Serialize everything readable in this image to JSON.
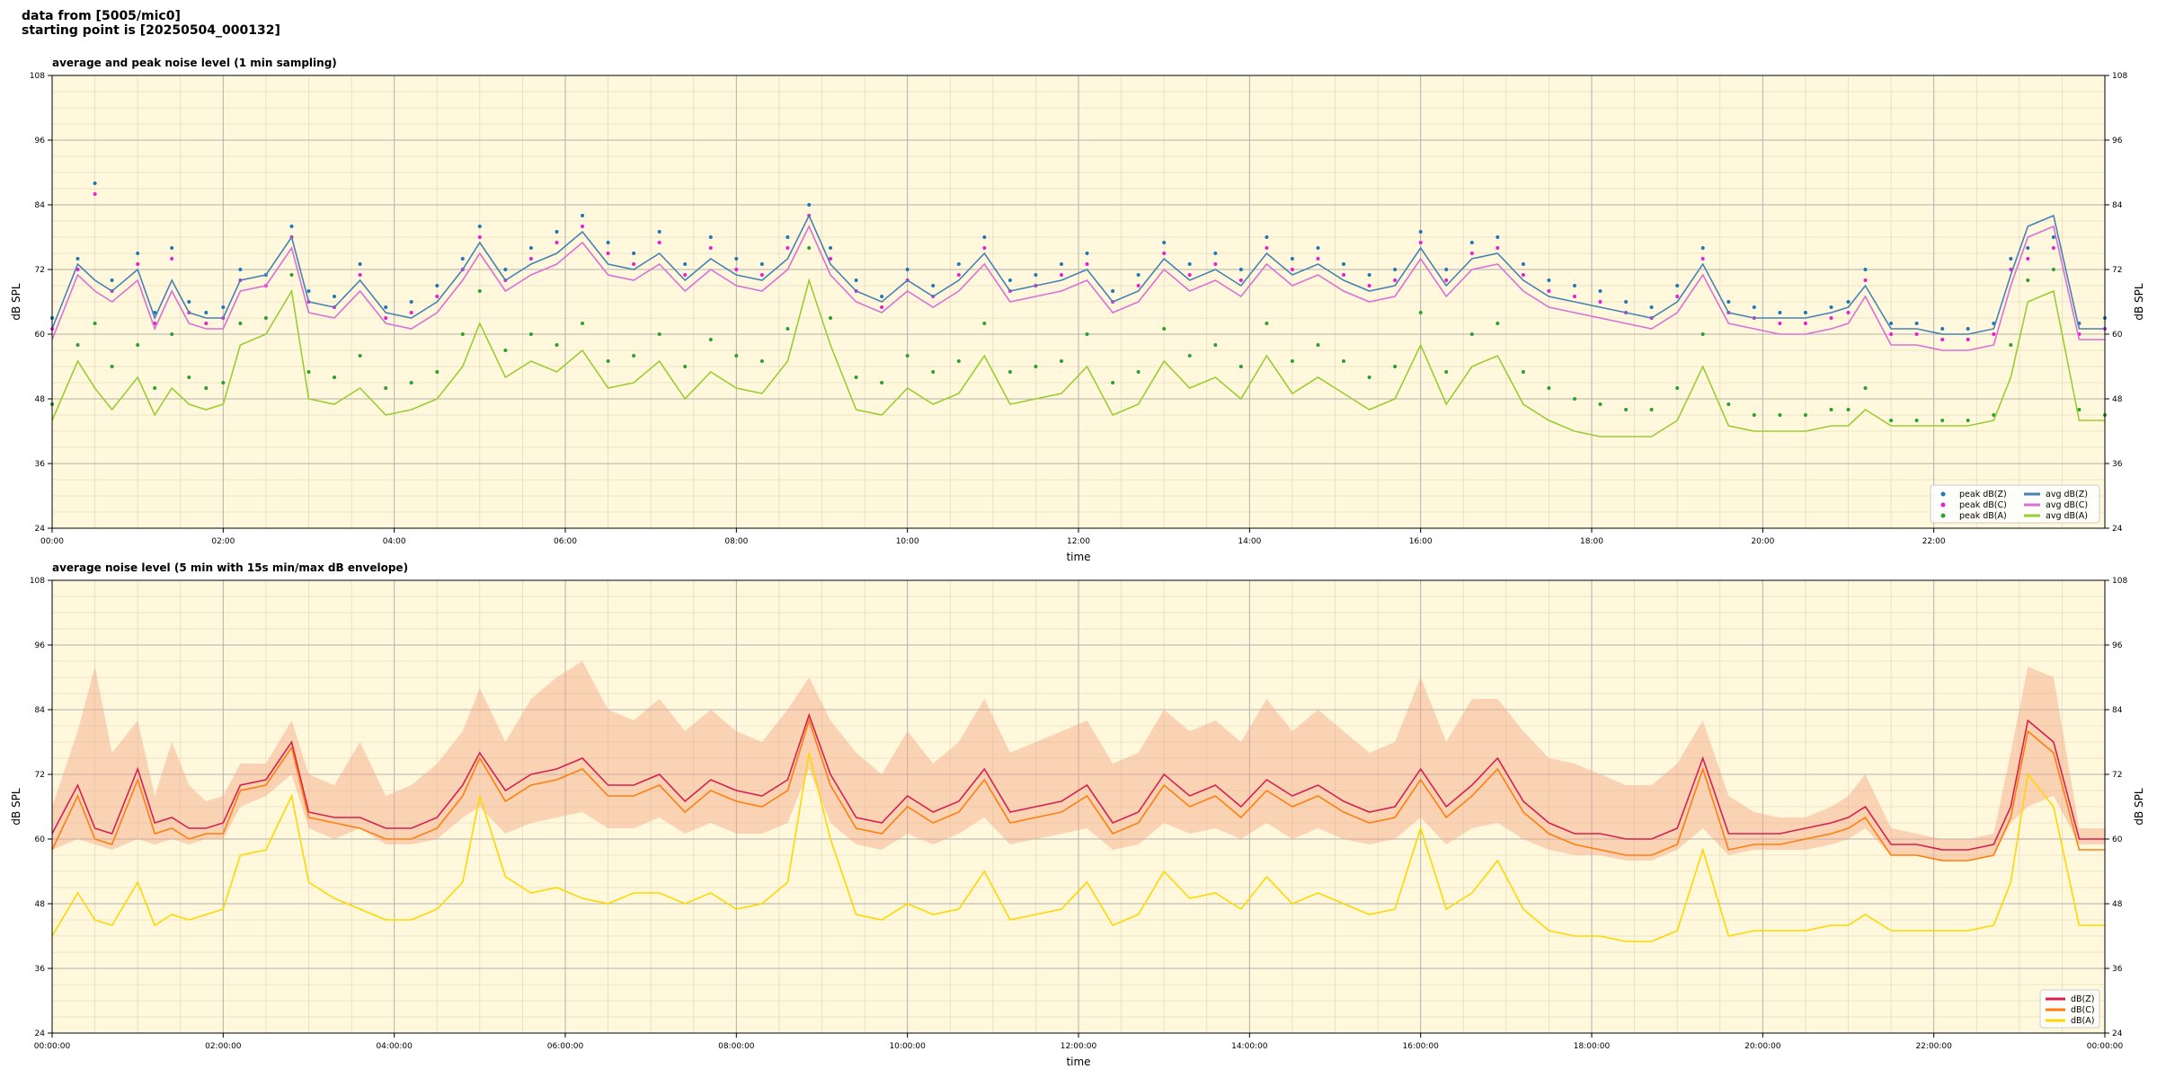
{
  "header": {
    "line1": "data from [5005/mic0]",
    "line2": "starting point is [20250504_000132]"
  },
  "chart_data": [
    {
      "type": "scatter+line",
      "title": "average and peak noise level (1 min sampling)",
      "xlabel": "time",
      "ylabel": "dB SPL",
      "xlim": [
        "00:00",
        "24:00"
      ],
      "ylim": [
        24,
        108
      ],
      "yticks": [
        24,
        36,
        48,
        60,
        72,
        84,
        96,
        108
      ],
      "xticks": [
        "00:00",
        "02:00",
        "04:00",
        "06:00",
        "08:00",
        "10:00",
        "12:00",
        "14:00",
        "16:00",
        "18:00",
        "20:00",
        "22:00"
      ],
      "grid": true,
      "legend_position": "lower-right",
      "background": "#fff8dc",
      "x_hours": [
        0.0,
        0.3,
        0.5,
        0.7,
        1.0,
        1.2,
        1.4,
        1.6,
        1.8,
        2.0,
        2.2,
        2.5,
        2.8,
        3.0,
        3.3,
        3.6,
        3.9,
        4.2,
        4.5,
        4.8,
        5.0,
        5.3,
        5.6,
        5.9,
        6.2,
        6.5,
        6.8,
        7.1,
        7.4,
        7.7,
        8.0,
        8.3,
        8.6,
        8.85,
        9.1,
        9.4,
        9.7,
        10.0,
        10.3,
        10.6,
        10.9,
        11.2,
        11.5,
        11.8,
        12.1,
        12.4,
        12.7,
        13.0,
        13.3,
        13.6,
        13.9,
        14.2,
        14.5,
        14.8,
        15.1,
        15.4,
        15.7,
        16.0,
        16.3,
        16.6,
        16.9,
        17.2,
        17.5,
        17.8,
        18.1,
        18.4,
        18.7,
        19.0,
        19.3,
        19.6,
        19.9,
        20.2,
        20.5,
        20.8,
        21.0,
        21.2,
        21.5,
        21.8,
        22.1,
        22.4,
        22.7,
        22.9,
        23.1,
        23.4,
        23.7,
        24.0
      ],
      "series": [
        {
          "name": "peak dB(Z)",
          "kind": "points",
          "color": "#1f77b4",
          "values": [
            63,
            74,
            88,
            70,
            75,
            64,
            76,
            66,
            64,
            65,
            72,
            71,
            80,
            68,
            67,
            73,
            65,
            66,
            69,
            74,
            80,
            72,
            76,
            79,
            82,
            77,
            75,
            79,
            73,
            78,
            74,
            73,
            78,
            84,
            76,
            70,
            67,
            72,
            69,
            73,
            78,
            70,
            71,
            73,
            75,
            68,
            71,
            77,
            73,
            75,
            72,
            78,
            74,
            76,
            73,
            71,
            72,
            79,
            72,
            77,
            78,
            73,
            70,
            69,
            68,
            66,
            65,
            69,
            76,
            66,
            65,
            64,
            64,
            65,
            66,
            72,
            62,
            62,
            61,
            61,
            62,
            74,
            76,
            78,
            62,
            63
          ]
        },
        {
          "name": "peak dB(C)",
          "kind": "points",
          "color": "#e91ecf",
          "values": [
            61,
            72,
            86,
            68,
            73,
            62,
            74,
            64,
            62,
            63,
            70,
            69,
            78,
            66,
            65,
            71,
            63,
            64,
            67,
            72,
            78,
            70,
            74,
            77,
            80,
            75,
            73,
            77,
            71,
            76,
            72,
            71,
            76,
            82,
            74,
            68,
            65,
            70,
            67,
            71,
            76,
            68,
            69,
            71,
            73,
            66,
            69,
            75,
            71,
            73,
            70,
            76,
            72,
            74,
            71,
            69,
            70,
            77,
            70,
            75,
            76,
            71,
            68,
            67,
            66,
            64,
            63,
            67,
            74,
            64,
            63,
            62,
            62,
            63,
            64,
            70,
            60,
            60,
            59,
            59,
            60,
            72,
            74,
            76,
            60,
            61
          ]
        },
        {
          "name": "peak dB(A)",
          "kind": "points",
          "color": "#2ca02c",
          "values": [
            47,
            58,
            62,
            54,
            58,
            50,
            60,
            52,
            50,
            51,
            62,
            63,
            71,
            53,
            52,
            56,
            50,
            51,
            53,
            60,
            68,
            57,
            60,
            58,
            62,
            55,
            56,
            60,
            54,
            59,
            56,
            55,
            61,
            76,
            63,
            52,
            51,
            56,
            53,
            55,
            62,
            53,
            54,
            55,
            60,
            51,
            53,
            61,
            56,
            58,
            54,
            62,
            55,
            58,
            55,
            52,
            54,
            64,
            53,
            60,
            62,
            53,
            50,
            48,
            47,
            46,
            46,
            50,
            60,
            47,
            45,
            45,
            45,
            46,
            46,
            50,
            44,
            44,
            44,
            44,
            45,
            58,
            70,
            72,
            46,
            45
          ]
        },
        {
          "name": "avg dB(Z)",
          "kind": "line",
          "color": "#4682b4",
          "values": [
            61,
            73,
            70,
            68,
            72,
            63,
            70,
            64,
            63,
            63,
            70,
            71,
            78,
            66,
            65,
            70,
            64,
            63,
            66,
            72,
            77,
            70,
            73,
            75,
            79,
            73,
            72,
            75,
            70,
            74,
            71,
            70,
            74,
            82,
            73,
            68,
            66,
            70,
            67,
            70,
            75,
            68,
            69,
            70,
            72,
            66,
            68,
            74,
            70,
            72,
            69,
            75,
            71,
            73,
            70,
            68,
            69,
            76,
            69,
            74,
            75,
            70,
            67,
            66,
            65,
            64,
            63,
            66,
            73,
            64,
            63,
            63,
            63,
            64,
            65,
            69,
            61,
            61,
            60,
            60,
            61,
            71,
            80,
            82,
            61,
            61
          ]
        },
        {
          "name": "avg dB(C)",
          "kind": "line",
          "color": "#da70d6",
          "values": [
            59,
            71,
            68,
            66,
            70,
            61,
            68,
            62,
            61,
            61,
            68,
            69,
            76,
            64,
            63,
            68,
            62,
            61,
            64,
            70,
            75,
            68,
            71,
            73,
            77,
            71,
            70,
            73,
            68,
            72,
            69,
            68,
            72,
            80,
            71,
            66,
            64,
            68,
            65,
            68,
            73,
            66,
            67,
            68,
            70,
            64,
            66,
            72,
            68,
            70,
            67,
            73,
            69,
            71,
            68,
            66,
            67,
            74,
            67,
            72,
            73,
            68,
            65,
            64,
            63,
            62,
            61,
            64,
            71,
            62,
            61,
            60,
            60,
            61,
            62,
            67,
            58,
            58,
            57,
            57,
            58,
            69,
            78,
            80,
            59,
            59
          ]
        },
        {
          "name": "avg dB(A)",
          "kind": "line",
          "color": "#9acd32",
          "values": [
            44,
            55,
            50,
            46,
            52,
            45,
            50,
            47,
            46,
            47,
            58,
            60,
            68,
            48,
            47,
            50,
            45,
            46,
            48,
            54,
            62,
            52,
            55,
            53,
            57,
            50,
            51,
            55,
            48,
            53,
            50,
            49,
            55,
            70,
            58,
            46,
            45,
            50,
            47,
            49,
            56,
            47,
            48,
            49,
            54,
            45,
            47,
            55,
            50,
            52,
            48,
            56,
            49,
            52,
            49,
            46,
            48,
            58,
            47,
            54,
            56,
            47,
            44,
            42,
            41,
            41,
            41,
            44,
            54,
            43,
            42,
            42,
            42,
            43,
            43,
            46,
            43,
            43,
            43,
            43,
            44,
            52,
            66,
            68,
            44,
            44
          ]
        }
      ]
    },
    {
      "type": "line+envelope",
      "title": "average noise level (5 min with 15s min/max dB envelope)",
      "xlabel": "time",
      "ylabel": "dB SPL",
      "xlim": [
        "00:00:00",
        "00:00:00"
      ],
      "ylim": [
        24,
        108
      ],
      "yticks": [
        24,
        36,
        48,
        60,
        72,
        84,
        96,
        108
      ],
      "xticks": [
        "00:00:00",
        "02:00:00",
        "04:00:00",
        "06:00:00",
        "08:00:00",
        "10:00:00",
        "12:00:00",
        "14:00:00",
        "16:00:00",
        "18:00:00",
        "20:00:00",
        "22:00:00",
        "00:00:00"
      ],
      "grid": true,
      "legend_position": "lower-right",
      "background": "#fff8dc",
      "envelope_color": "#f4a582",
      "x_hours": [
        0.0,
        0.3,
        0.5,
        0.7,
        1.0,
        1.2,
        1.4,
        1.6,
        1.8,
        2.0,
        2.2,
        2.5,
        2.8,
        3.0,
        3.3,
        3.6,
        3.9,
        4.2,
        4.5,
        4.8,
        5.0,
        5.3,
        5.6,
        5.9,
        6.2,
        6.5,
        6.8,
        7.1,
        7.4,
        7.7,
        8.0,
        8.3,
        8.6,
        8.85,
        9.1,
        9.4,
        9.7,
        10.0,
        10.3,
        10.6,
        10.9,
        11.2,
        11.5,
        11.8,
        12.1,
        12.4,
        12.7,
        13.0,
        13.3,
        13.6,
        13.9,
        14.2,
        14.5,
        14.8,
        15.1,
        15.4,
        15.7,
        16.0,
        16.3,
        16.6,
        16.9,
        17.2,
        17.5,
        17.8,
        18.1,
        18.4,
        18.7,
        19.0,
        19.3,
        19.6,
        19.9,
        20.2,
        20.5,
        20.8,
        21.0,
        21.2,
        21.5,
        21.8,
        22.1,
        22.4,
        22.7,
        22.9,
        23.1,
        23.4,
        23.7,
        24.0
      ],
      "envelope_min": [
        58,
        60,
        59,
        58,
        60,
        59,
        60,
        59,
        60,
        60,
        66,
        68,
        72,
        62,
        60,
        62,
        59,
        59,
        60,
        64,
        66,
        61,
        63,
        64,
        65,
        62,
        62,
        64,
        61,
        63,
        61,
        61,
        63,
        73,
        63,
        59,
        58,
        61,
        59,
        61,
        64,
        59,
        60,
        61,
        62,
        58,
        59,
        63,
        61,
        62,
        60,
        63,
        60,
        62,
        60,
        59,
        60,
        64,
        59,
        62,
        63,
        60,
        58,
        57,
        57,
        56,
        56,
        58,
        62,
        57,
        58,
        58,
        58,
        59,
        60,
        62,
        57,
        57,
        56,
        56,
        57,
        63,
        66,
        68,
        59,
        59
      ],
      "envelope_max": [
        66,
        80,
        92,
        76,
        82,
        68,
        78,
        70,
        67,
        68,
        74,
        74,
        82,
        72,
        70,
        78,
        68,
        70,
        74,
        80,
        88,
        78,
        86,
        90,
        93,
        84,
        82,
        86,
        80,
        84,
        80,
        78,
        84,
        90,
        82,
        76,
        72,
        80,
        74,
        78,
        86,
        76,
        78,
        80,
        82,
        74,
        76,
        84,
        80,
        82,
        78,
        86,
        80,
        84,
        80,
        76,
        78,
        90,
        78,
        86,
        86,
        80,
        75,
        74,
        72,
        70,
        70,
        74,
        82,
        68,
        65,
        64,
        64,
        66,
        68,
        72,
        62,
        61,
        60,
        60,
        61,
        76,
        92,
        90,
        62,
        62
      ],
      "series": [
        {
          "name": "dB(Z)",
          "color": "#d6204f",
          "values": [
            61,
            70,
            62,
            61,
            73,
            63,
            64,
            62,
            62,
            63,
            70,
            71,
            78,
            65,
            64,
            64,
            62,
            62,
            64,
            70,
            76,
            69,
            72,
            73,
            75,
            70,
            70,
            72,
            67,
            71,
            69,
            68,
            71,
            83,
            72,
            64,
            63,
            68,
            65,
            67,
            73,
            65,
            66,
            67,
            70,
            63,
            65,
            72,
            68,
            70,
            66,
            71,
            68,
            70,
            67,
            65,
            66,
            73,
            66,
            70,
            75,
            67,
            63,
            61,
            61,
            60,
            60,
            62,
            75,
            61,
            61,
            61,
            62,
            63,
            64,
            66,
            59,
            59,
            58,
            58,
            59,
            66,
            82,
            78,
            60,
            60
          ]
        },
        {
          "name": "dB(C)",
          "color": "#ff7f0e",
          "values": [
            58,
            68,
            60,
            59,
            71,
            61,
            62,
            60,
            61,
            61,
            69,
            70,
            77,
            64,
            63,
            62,
            60,
            60,
            62,
            68,
            75,
            67,
            70,
            71,
            73,
            68,
            68,
            70,
            65,
            69,
            67,
            66,
            69,
            82,
            70,
            62,
            61,
            66,
            63,
            65,
            71,
            63,
            64,
            65,
            68,
            61,
            63,
            70,
            66,
            68,
            64,
            69,
            66,
            68,
            65,
            63,
            64,
            71,
            64,
            68,
            73,
            65,
            61,
            59,
            58,
            57,
            57,
            59,
            73,
            58,
            59,
            59,
            60,
            61,
            62,
            64,
            57,
            57,
            56,
            56,
            57,
            64,
            80,
            76,
            58,
            58
          ]
        },
        {
          "name": "dB(A)",
          "color": "#ffd700",
          "values": [
            42,
            50,
            45,
            44,
            52,
            44,
            46,
            45,
            46,
            47,
            57,
            58,
            68,
            52,
            49,
            47,
            45,
            45,
            47,
            52,
            68,
            53,
            50,
            51,
            49,
            48,
            50,
            50,
            48,
            50,
            47,
            48,
            52,
            76,
            60,
            46,
            45,
            48,
            46,
            47,
            54,
            45,
            46,
            47,
            52,
            44,
            46,
            54,
            49,
            50,
            47,
            53,
            48,
            50,
            48,
            46,
            47,
            62,
            47,
            50,
            56,
            47,
            43,
            42,
            42,
            41,
            41,
            43,
            58,
            42,
            43,
            43,
            43,
            44,
            44,
            46,
            43,
            43,
            43,
            43,
            44,
            52,
            72,
            66,
            44,
            44
          ]
        }
      ]
    }
  ]
}
